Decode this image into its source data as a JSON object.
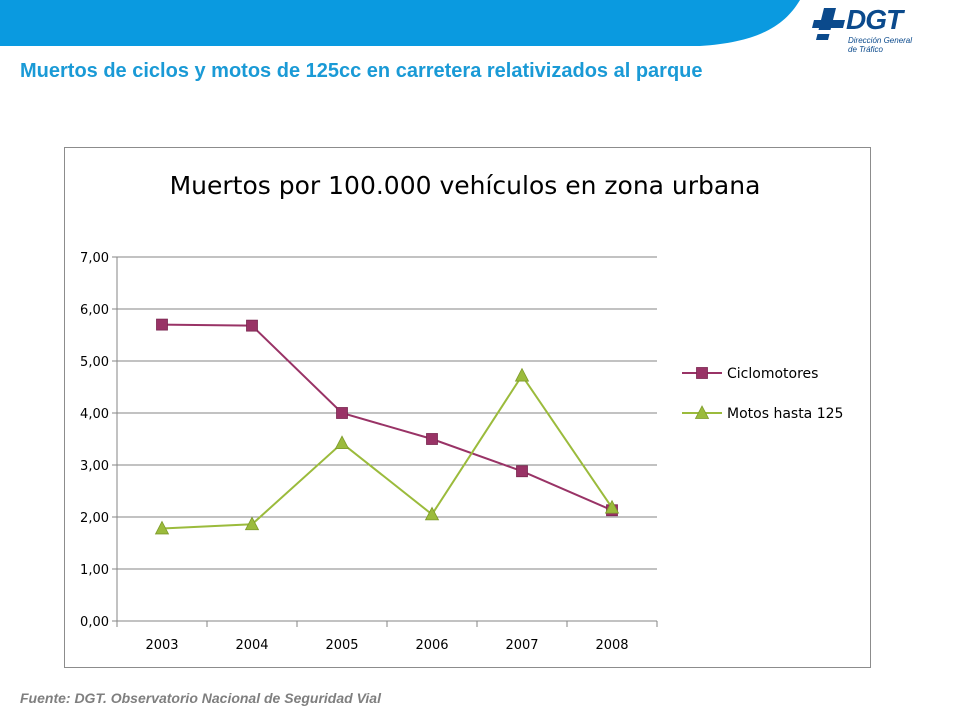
{
  "slide": {
    "title": "Muertos de ciclos y motos de 125cc en carretera relativizados al parque",
    "source": "Fuente: DGT. Observatorio Nacional de Seguridad Vial",
    "banner_color": "#0a9ae0",
    "title_color": "#1a9ad6"
  },
  "logo": {
    "word": "DGT",
    "subtitle_line1": "Dirección General",
    "subtitle_line2": "de Tráfico",
    "icon": "dgt-cross-logo-icon",
    "color": "#0b4a8c"
  },
  "chart_data": {
    "type": "line",
    "title": "Muertos por 100.000 vehículos en zona urbana",
    "xlabel": "",
    "ylabel": "",
    "categories": [
      "2003",
      "2004",
      "2005",
      "2006",
      "2007",
      "2008"
    ],
    "ylim": [
      0,
      7
    ],
    "yticks": [
      "0,00",
      "1,00",
      "2,00",
      "3,00",
      "4,00",
      "5,00",
      "6,00",
      "7,00"
    ],
    "grid": true,
    "legend_position": "right",
    "series": [
      {
        "name": "Ciclomotores",
        "values": [
          5.7,
          5.68,
          4.0,
          3.5,
          2.88,
          2.13
        ],
        "color": "#993366",
        "marker": "square"
      },
      {
        "name": "Motos hasta 125",
        "values": [
          1.78,
          1.86,
          3.42,
          2.05,
          4.72,
          2.18
        ],
        "color": "#9bbb3c",
        "marker": "triangle"
      }
    ]
  }
}
